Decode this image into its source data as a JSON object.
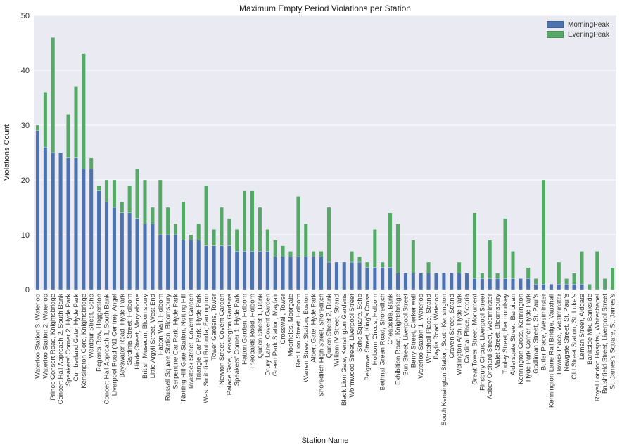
{
  "chart_data": {
    "type": "bar",
    "stacked": true,
    "title": "Maximum Empty Period Violations per Station",
    "xlabel": "Station Name",
    "ylabel": "Violations Count",
    "ylim": [
      0,
      50
    ],
    "yticks": [
      0,
      10,
      20,
      30,
      40,
      50
    ],
    "grid": true,
    "legend_position": "top-right",
    "colors": {
      "background": "#eaeaf2",
      "grid": "#ffffff",
      "MorningPeak": "#4c72b0",
      "EveningPeak": "#55a868"
    },
    "categories": [
      "Waterloo Station 3, Waterloo",
      "Waterloo Station 2, Waterloo",
      "Prince Consort Road, Knightsbridge",
      "Concert Hall Approach 2, South Bank",
      "Speakers' Corner 2, Hyde Park",
      "Cumberland Gate, Hyde Park",
      "Kensington Gore, Knightsbridge",
      "Wardour Street, Soho",
      "Regents Row, Haggerston",
      "Concert Hall Approach 1, South Bank",
      "Liverpool Road (N1 Centre), Angel",
      "Bayswater Road, Hyde Park",
      "Sardinia Street, Holborn",
      "Hinde Street, Marylebone",
      "British Museum, Bloomsbury",
      "Little Argyll Street, West End",
      "Hatton Wall, Holborn",
      "Russell Square Station, Bloomsbury",
      "Serpentine Car Park, Hyde Park",
      "Notting Hill Gate Station, Notting Hill",
      "Tavistock Street, Covent Garden",
      "Triangle Car Park, Hyde Park",
      "West Smithfield Rotunda, Farringdon",
      "Tower Gardens, Tower",
      "Newton Street, Covent Garden",
      "Palace Gate, Kensington Gardens",
      "Speakers' Corner 1, Hyde Park",
      "Hatton Garden, Holborn",
      "Theobalds Road, Holborn",
      "Queen Street 1, Bank",
      "Drury Lane, Covent Garden",
      "Green Park Station, Mayfair",
      "Crosswall, Tower",
      "Moorfields, Moorgate",
      "Red Lion Street, Holborn",
      "Warren Street Station, Euston",
      "Albert Gate, Hyde Park",
      "Shoreditch High Street, Shoreditch",
      "Queen Street 2, Bank",
      "William IV Street, Strand",
      "Black Lion Gate, Kensington Gardens",
      "Wormwood Street, Liverpool Street",
      "Soho Square, Soho",
      "Belgrove Street, King's Cross",
      "Holborn Circus, Holborn",
      "Bethnal Green Road, Shoreditch",
      "Cheapside, Bank",
      "Exhibition Road, Knightsbridge",
      "Sun Street, Liverpool Street",
      "Berry Street, Clerkenwell",
      "Waterloo Station 1, Waterloo",
      "Whitehall Place, Strand",
      "Baylis Road, Waterloo",
      "South Kensington Station, South Kensington",
      "Craven Street, Strand",
      "Wellington Arch, Hyde Park",
      "Cardinal Place, Victoria",
      "Great Tower Street, Monument",
      "Finsbury Circus, Liverpool Street",
      "Abbey Orchard Street, Westminster",
      "Malet Street, Bloomsbury",
      "Tooley Street, Bermondsey",
      "Aldersgate Street, Barbican",
      "Kennington Cross, Kennington",
      "Hyde Park Corner, Hyde Park",
      "Godliman Street, St. Paul's",
      "Butler Place, Westminster",
      "Kennington Lane Rail Bridge, Vauxhall",
      "Howick Place, Westminster",
      "Newgate Street, St. Paul's",
      "Old Street Station, St. Luke's",
      "Leman Street, Aldgate",
      "Bankside Mix, Bankside",
      "Royal London Hospital, Whitechapel",
      "Brushfield Street, Liverpool Street",
      "St. James's Square, St. James's"
    ],
    "series": [
      {
        "name": "MorningPeak",
        "values": [
          29,
          26,
          25,
          25,
          24,
          24,
          22,
          22,
          18,
          16,
          15,
          14,
          14,
          13,
          12,
          12,
          10,
          10,
          10,
          9,
          9,
          9,
          8,
          8,
          8,
          8,
          7,
          7,
          7,
          7,
          7,
          6,
          6,
          6,
          6,
          6,
          6,
          6,
          5,
          5,
          5,
          5,
          5,
          4,
          4,
          4,
          4,
          3,
          3,
          3,
          3,
          3,
          3,
          3,
          3,
          3,
          3,
          2,
          2,
          2,
          2,
          2,
          2,
          2,
          2,
          1,
          1,
          1,
          1,
          1,
          1,
          1,
          0,
          0,
          0,
          0
        ]
      },
      {
        "name": "EveningPeak",
        "values": [
          1,
          10,
          21,
          0,
          8,
          13,
          21,
          2,
          1,
          4,
          5,
          2,
          5,
          9,
          8,
          3,
          10,
          5,
          2,
          7,
          1,
          3,
          11,
          3,
          7,
          5,
          4,
          11,
          11,
          8,
          4,
          3,
          2,
          1,
          11,
          6,
          1,
          1,
          10,
          0,
          0,
          2,
          1,
          1,
          7,
          1,
          10,
          9,
          0,
          6,
          0,
          2,
          0,
          0,
          0,
          2,
          0,
          12,
          1,
          7,
          1,
          11,
          5,
          0,
          2,
          1,
          19,
          0,
          4,
          1,
          2,
          6,
          1,
          7,
          2,
          4
        ]
      }
    ]
  }
}
